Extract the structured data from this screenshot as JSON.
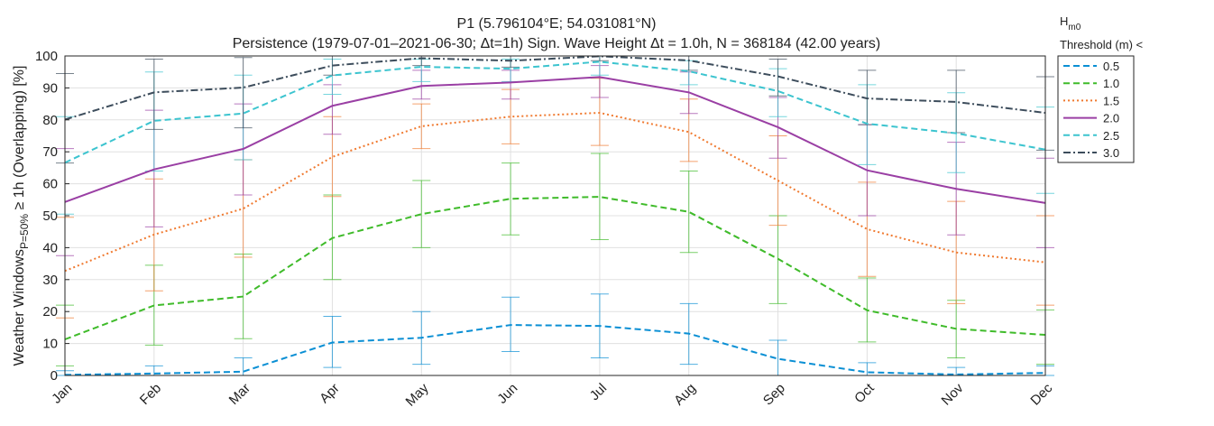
{
  "chart_data": {
    "type": "line",
    "title": "P1 (5.796104°E; 54.031081°N)",
    "subtitle": "Persistence (1979-07-01–2021-06-30; Δt=1h) Sign. Wave Height Δt = 1.0h, N = 368184 (42.00 years)",
    "ylabel": {
      "prefix": "Weather Windows",
      "subscript": "P=50%",
      "suffix": " ≥ 1h (Overlapping)  [%]"
    },
    "xlabel": "",
    "categories": [
      "Jan",
      "Feb",
      "Mar",
      "Apr",
      "May",
      "Jun",
      "Jul",
      "Aug",
      "Sep",
      "Oct",
      "Nov",
      "Dec"
    ],
    "ylim": [
      0,
      100
    ],
    "yticks": [
      0,
      10,
      20,
      30,
      40,
      50,
      60,
      70,
      80,
      90,
      100
    ],
    "grid": true,
    "legend": {
      "title_main": "H",
      "title_sub": "m0",
      "title_line2": "Threshold (m) <",
      "placement": "outside-right"
    },
    "series": [
      {
        "name": "0.5",
        "color": "#0a8fd4",
        "dash": "dashed",
        "values": [
          0.2,
          0.6,
          1.2,
          10.3,
          11.8,
          15.8,
          15.5,
          13.1,
          5.2,
          1.0,
          0.3,
          0.8
        ],
        "err_low": [
          0,
          0,
          0,
          2.5,
          3.5,
          7.5,
          5.5,
          3.5,
          0,
          0,
          0,
          0
        ],
        "err_high": [
          1.5,
          3.0,
          5.5,
          18.5,
          20.0,
          24.5,
          25.5,
          22.5,
          11.0,
          4.0,
          2.5,
          3.0
        ]
      },
      {
        "name": "1.0",
        "color": "#3fbb2a",
        "dash": "dashed",
        "values": [
          11.3,
          21.9,
          24.7,
          43.0,
          50.5,
          55.3,
          55.9,
          51.2,
          36.5,
          20.4,
          14.6,
          12.7
        ],
        "err_low": [
          3.0,
          9.5,
          11.5,
          30.0,
          40.0,
          44.0,
          42.5,
          38.5,
          22.5,
          10.5,
          5.5,
          3.5
        ],
        "err_high": [
          22.0,
          34.5,
          38.0,
          56.5,
          61.0,
          66.5,
          69.5,
          64.0,
          50.0,
          30.5,
          23.5,
          20.5
        ]
      },
      {
        "name": "1.5",
        "color": "#f07a30",
        "dash": "dotted",
        "values": [
          32.7,
          44.1,
          52.2,
          68.4,
          78.0,
          81.0,
          82.2,
          76.2,
          61.0,
          45.8,
          38.5,
          35.4
        ],
        "err_low": [
          18.0,
          26.5,
          37.0,
          56.0,
          71.0,
          72.5,
          72.0,
          67.0,
          47.0,
          31.0,
          22.5,
          22.0
        ],
        "err_high": [
          49.5,
          61.5,
          67.5,
          81.0,
          85.0,
          89.5,
          93.0,
          86.5,
          75.0,
          60.5,
          54.5,
          50.0
        ]
      },
      {
        "name": "2.0",
        "color": "#9a3fa4",
        "dash": "solid",
        "values": [
          54.3,
          64.5,
          70.9,
          84.4,
          90.6,
          91.7,
          93.4,
          88.6,
          77.7,
          64.2,
          58.4,
          54.0
        ],
        "err_low": [
          37.5,
          46.5,
          56.5,
          75.5,
          86.5,
          86.5,
          87.0,
          82.0,
          68.0,
          50.0,
          44.0,
          40.0
        ],
        "err_high": [
          71.0,
          83.0,
          85.0,
          91.0,
          95.5,
          95.5,
          97.0,
          95.0,
          87.0,
          78.5,
          73.0,
          68.0
        ]
      },
      {
        "name": "2.5",
        "color": "#3cc4cf",
        "dash": "dashed",
        "values": [
          66.6,
          79.7,
          82.0,
          93.9,
          96.6,
          96.0,
          98.2,
          95.2,
          89.0,
          78.8,
          75.8,
          70.7
        ],
        "err_low": [
          50.5,
          64.0,
          67.5,
          88.0,
          92.0,
          92.0,
          94.0,
          91.0,
          81.0,
          66.0,
          63.5,
          57.0
        ],
        "err_high": [
          81.0,
          95.0,
          94.0,
          99.0,
          99.0,
          99.0,
          100.0,
          98.5,
          96.0,
          91.0,
          88.5,
          84.0
        ]
      },
      {
        "name": "3.0",
        "color": "#3d4d5c",
        "dash": "dashdot",
        "values": [
          80.1,
          88.6,
          90.1,
          97.0,
          99.3,
          98.5,
          99.9,
          98.6,
          93.6,
          86.7,
          85.6,
          82.2
        ],
        "err_low": [
          66.5,
          77.0,
          77.5,
          94.0,
          97.0,
          96.5,
          98.5,
          95.5,
          87.5,
          78.5,
          76.0,
          70.5
        ],
        "err_high": [
          94.5,
          99.0,
          99.5,
          100.0,
          100.0,
          100.0,
          100.0,
          100.0,
          99.0,
          95.5,
          95.5,
          93.5
        ]
      }
    ]
  }
}
